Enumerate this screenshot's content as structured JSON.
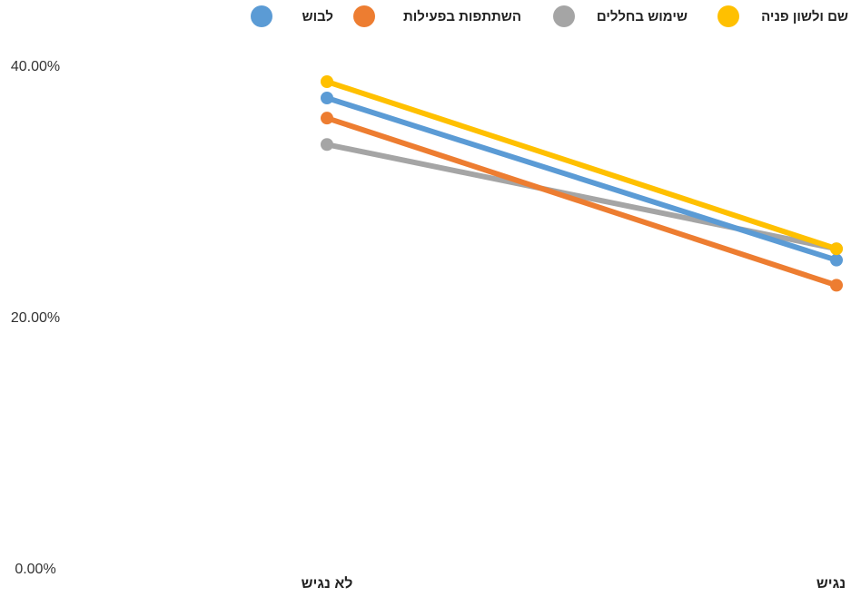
{
  "chart_data": {
    "type": "line",
    "categories": [
      "לא נגיש",
      "נגיש"
    ],
    "y_ticks": [
      "0.00%",
      "20.00%",
      "40.00%"
    ],
    "ylim": [
      0,
      40
    ],
    "legend_position": "top",
    "grid": false,
    "series": [
      {
        "name": "שם ולשון פניה",
        "color": "#FFC000",
        "values": [
          38.7,
          25.4
        ]
      },
      {
        "name": "שימוש בחללים",
        "color": "#A5A5A5",
        "values": [
          33.7,
          25.4
        ]
      },
      {
        "name": "השתתפות בפעילות",
        "color": "#ED7D31",
        "values": [
          35.8,
          22.5
        ]
      },
      {
        "name": "לבוש",
        "color": "#5B9BD5",
        "values": [
          37.4,
          24.5
        ]
      }
    ]
  }
}
